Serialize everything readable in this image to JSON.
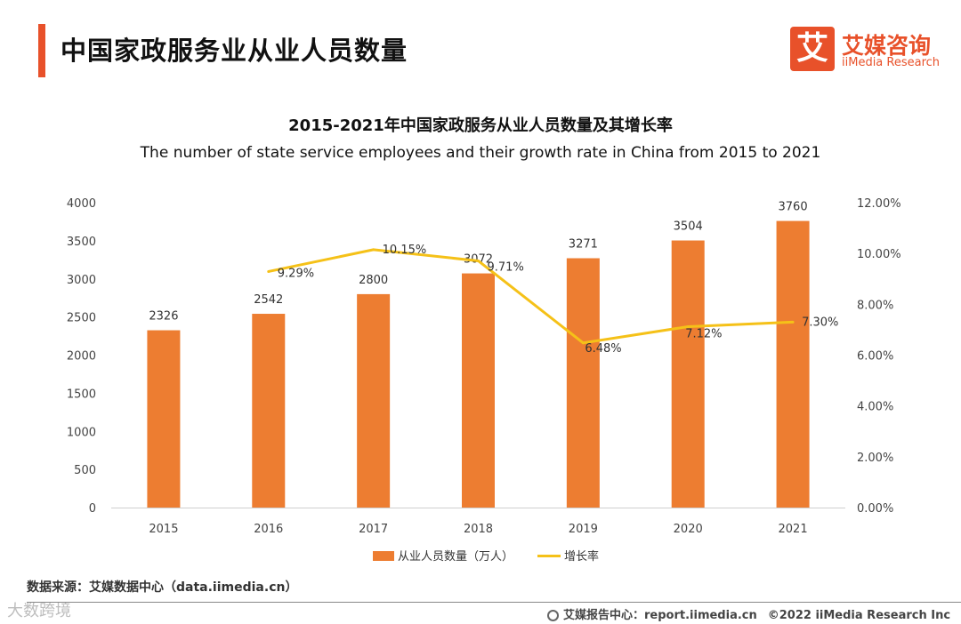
{
  "header": {
    "title": "中国家政服务业从业人员数量",
    "logo_char": "艾",
    "logo_cn": "艾媒咨询",
    "logo_en": "iiMedia Research"
  },
  "chart_data": {
    "type": "bar",
    "title": "2015-2021年中国家政服务从业人员数量及其增长率",
    "subtitle": "The number of state service employees and their growth rate in China from 2015 to 2021",
    "categories": [
      "2015",
      "2016",
      "2017",
      "2018",
      "2019",
      "2020",
      "2021"
    ],
    "series": [
      {
        "name": "从业人员数量（万人）",
        "type": "bar",
        "axis": "left",
        "values": [
          2326,
          2542,
          2800,
          3072,
          3271,
          3504,
          3760
        ],
        "labels": [
          "2326",
          "2542",
          "2800",
          "3072",
          "3271",
          "3504",
          "3760"
        ],
        "color": "#ed7d31"
      },
      {
        "name": "增长率",
        "type": "line",
        "axis": "right",
        "values": [
          null,
          9.29,
          10.15,
          9.71,
          6.48,
          7.12,
          7.3
        ],
        "labels": [
          "",
          "9.29%",
          "10.15%",
          "9.71%",
          "6.48%",
          "7.12%",
          "7.30%"
        ],
        "color": "#f5c118"
      }
    ],
    "y_left": {
      "range": [
        0,
        4000
      ],
      "ticks": [
        "0",
        "500",
        "1000",
        "1500",
        "2000",
        "2500",
        "3000",
        "3500",
        "4000"
      ]
    },
    "y_right": {
      "range": [
        0,
        12
      ],
      "ticks": [
        "0.00%",
        "2.00%",
        "4.00%",
        "6.00%",
        "8.00%",
        "10.00%",
        "12.00%"
      ]
    },
    "legend_position": "bottom-center",
    "grid": false
  },
  "footer": {
    "source": "数据来源：艾媒数据中心（data.iimedia.cn）",
    "report": "艾媒报告中心：report.iimedia.cn",
    "copyright": "©2022  iiMedia Research  Inc",
    "watermark": "大数跨境"
  }
}
